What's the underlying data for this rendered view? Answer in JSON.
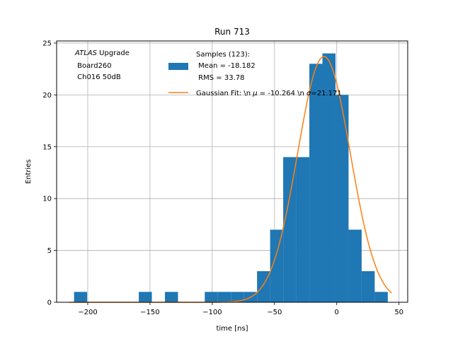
{
  "chart_data": {
    "type": "bar",
    "title": "Run 713",
    "xlabel": "time [ns]",
    "ylabel": "Entries",
    "xlim": [
      -225,
      57
    ],
    "ylim": [
      0,
      25.2
    ],
    "xticks": [
      -200,
      -150,
      -100,
      -50,
      0,
      50
    ],
    "yticks": [
      0,
      5,
      10,
      15,
      20,
      25
    ],
    "grid": true,
    "legend_position": "top-center",
    "colors": {
      "histogram": "#1f77b4",
      "fit": "#ff7f0e"
    },
    "annotation": {
      "italic_prefix": "ATLAS",
      "line1_rest": " Upgrade",
      "line2": " Board260",
      "line3": " Ch016 50dB"
    },
    "histogram": {
      "legend_lines": [
        "Samples (123):",
        " Mean = -18.182",
        " RMS = 33.78"
      ],
      "bins": [
        {
          "x0": -211.0,
          "x1": -200.5,
          "y": 1
        },
        {
          "x0": -159.0,
          "x1": -148.5,
          "y": 1
        },
        {
          "x0": -138.0,
          "x1": -127.5,
          "y": 1
        },
        {
          "x0": -106.0,
          "x1": -95.5,
          "y": 1
        },
        {
          "x0": -95.5,
          "x1": -85.0,
          "y": 1
        },
        {
          "x0": -85.0,
          "x1": -74.5,
          "y": 1
        },
        {
          "x0": -74.5,
          "x1": -64.0,
          "y": 1
        },
        {
          "x0": -64.0,
          "x1": -53.5,
          "y": 3
        },
        {
          "x0": -53.5,
          "x1": -43.0,
          "y": 7
        },
        {
          "x0": -43.0,
          "x1": -32.5,
          "y": 14
        },
        {
          "x0": -32.5,
          "x1": -22.0,
          "y": 14
        },
        {
          "x0": -22.0,
          "x1": -11.5,
          "y": 23
        },
        {
          "x0": -11.5,
          "x1": -1.0,
          "y": 24
        },
        {
          "x0": -1.0,
          "x1": 9.5,
          "y": 20
        },
        {
          "x0": 9.5,
          "x1": 20.0,
          "y": 7
        },
        {
          "x0": 20.0,
          "x1": 30.5,
          "y": 3
        },
        {
          "x0": 30.5,
          "x1": 41.0,
          "y": 1
        }
      ]
    },
    "fit": {
      "legend_prefix": "Gaussian Fit: \\n ",
      "mu_symbol": "μ",
      "mu_text": " = -10.264 \\n ",
      "sigma_symbol": "σ",
      "sigma_text": "=21.171",
      "amplitude": 23.7,
      "mu": -10.264,
      "sigma": 21.171,
      "x_range": [
        -215,
        44
      ]
    }
  }
}
